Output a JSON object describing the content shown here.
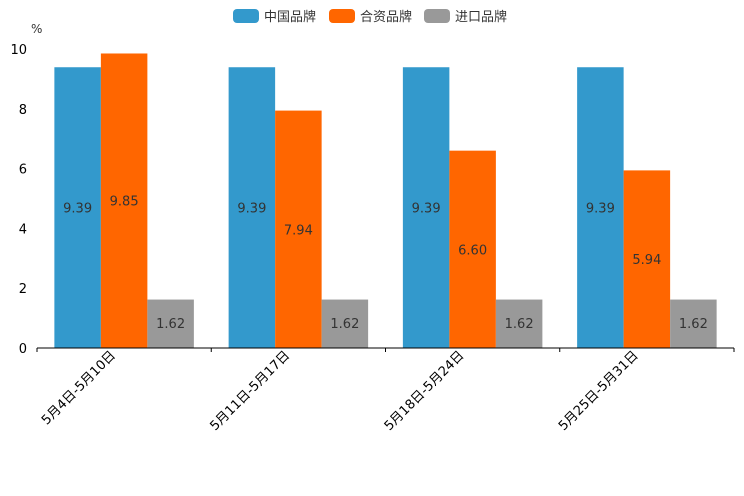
{
  "chart_data": {
    "type": "bar",
    "unit_label": "%",
    "categories": [
      "5月4日-5月10日",
      "5月11日-5月17日",
      "5月18日-5月24日",
      "5月25日-5月31日"
    ],
    "series": [
      {
        "name": "中国品牌",
        "color": "#3399cc",
        "values": [
          9.39,
          9.39,
          9.39,
          9.39
        ],
        "labels": [
          "9.39",
          "9.39",
          "9.39",
          "9.39"
        ]
      },
      {
        "name": "合资品牌",
        "color": "#ff6600",
        "values": [
          9.85,
          7.94,
          6.6,
          5.94
        ],
        "labels": [
          "9.85",
          "7.94",
          "6.60",
          "5.94"
        ]
      },
      {
        "name": "进口品牌",
        "color": "#999999",
        "values": [
          1.62,
          1.62,
          1.62,
          1.62
        ],
        "labels": [
          "1.62",
          "1.62",
          "1.62",
          "1.62"
        ]
      }
    ],
    "ylim": [
      0,
      10
    ],
    "yticks": [
      "0",
      "2",
      "4",
      "6",
      "8",
      "10"
    ],
    "legend_position": "top-center",
    "grid": false
  }
}
